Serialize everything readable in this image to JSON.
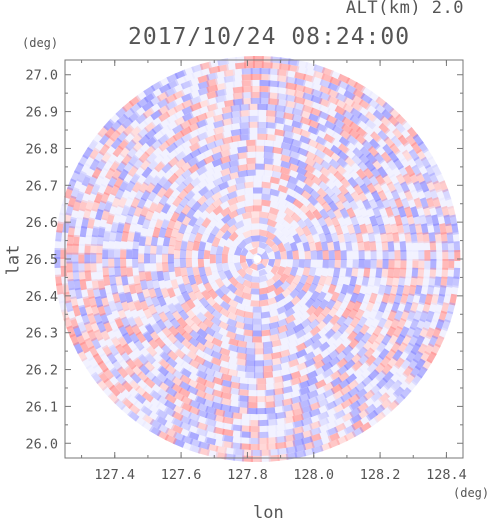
{
  "header": {
    "altitude_label": "ALT(km) 2.0",
    "timestamp": "2017/10/24 08:24:00"
  },
  "chart_data": {
    "type": "heatmap",
    "title": "2017/10/24 08:24:00",
    "subtitle": "ALT(km) 2.0",
    "xlabel": "lon",
    "ylabel": "lat",
    "x_unit": "(deg)",
    "y_unit": "(deg)",
    "xlim": [
      127.25,
      128.45
    ],
    "ylim": [
      25.96,
      27.04
    ],
    "x_ticks": [
      "127.4",
      "127.6",
      "127.8",
      "128.0",
      "128.2",
      "128.4"
    ],
    "y_ticks": [
      "26.0",
      "26.1",
      "26.2",
      "26.3",
      "26.4",
      "26.5",
      "26.6",
      "26.7",
      "26.8",
      "26.9",
      "27.0"
    ],
    "radar_center": {
      "lon": 127.83,
      "lat": 26.5
    },
    "colors": {
      "positive": "#ff8a8a",
      "negative": "#8a8aff",
      "frame": "#777777"
    }
  }
}
